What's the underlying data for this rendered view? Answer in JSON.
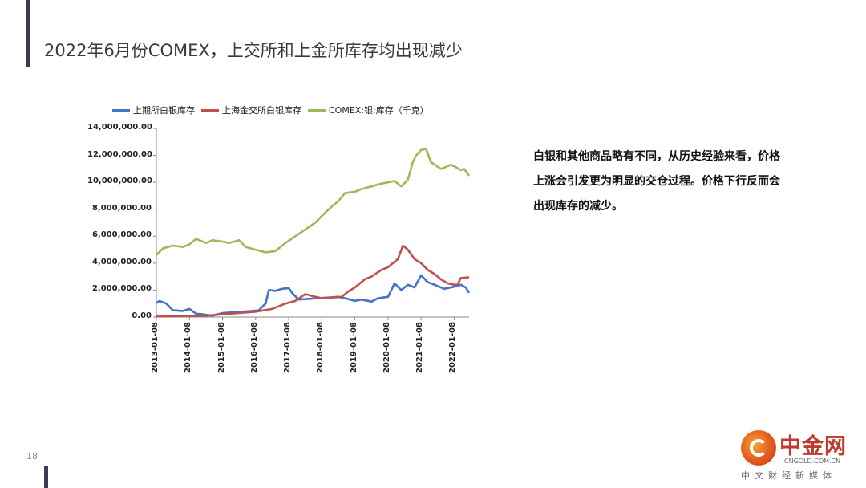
{
  "slide": {
    "title": "2022年6月份COMEX，上交所和上金所库存均出现减少",
    "page_number": "18",
    "body_text": "白银和其他商品略有不同，从历史经验来看，价格上涨会引发更为明显的交仓过程。价格下行反而会出现库存的减少。"
  },
  "logo": {
    "main": "中金网",
    "url": "CNGOLD.COM.CN",
    "sub": "中文财经新媒体"
  },
  "chart_data": {
    "type": "line",
    "title": "",
    "xlabel": "",
    "ylabel": "",
    "ylim": [
      0,
      14000000
    ],
    "yticks": [
      "0.00",
      "2,000,000.00",
      "4,000,000.00",
      "6,000,000.00",
      "8,000,000.00",
      "10,000,000.00",
      "12,000,000.00",
      "14,000,000.00"
    ],
    "ytick_values": [
      0,
      2000000,
      4000000,
      6000000,
      8000000,
      10000000,
      12000000,
      14000000
    ],
    "xlim": [
      2013.0,
      2022.45
    ],
    "xticks": [
      "2013-01-08",
      "2014-01-08",
      "2015-01-08",
      "2016-01-08",
      "2017-01-08",
      "2018-01-08",
      "2019-01-08",
      "2020-01-08",
      "2021-01-08",
      "2022-01-08"
    ],
    "xtick_values": [
      2013,
      2014,
      2015,
      2016,
      2017,
      2018,
      2019,
      2020,
      2021,
      2022
    ],
    "grid": false,
    "legend_position": "top",
    "series": [
      {
        "name": "上期所白银库存",
        "color": "#4472c4",
        "x": [
          2013.0,
          2013.1,
          2013.3,
          2013.5,
          2013.8,
          2014.0,
          2014.2,
          2014.4,
          2014.7,
          2015.0,
          2015.3,
          2015.6,
          2015.9,
          2016.1,
          2016.3,
          2016.4,
          2016.6,
          2016.8,
          2017.0,
          2017.1,
          2017.3,
          2017.6,
          2017.9,
          2018.2,
          2018.5,
          2018.7,
          2019.0,
          2019.2,
          2019.5,
          2019.7,
          2020.0,
          2020.2,
          2020.4,
          2020.6,
          2020.8,
          2021.0,
          2021.2,
          2021.4,
          2021.7,
          2022.0,
          2022.2,
          2022.35,
          2022.45
        ],
        "values": [
          1050000,
          1200000,
          1000000,
          500000,
          450000,
          600000,
          250000,
          200000,
          100000,
          300000,
          350000,
          400000,
          450000,
          500000,
          1000000,
          2000000,
          1950000,
          2100000,
          2150000,
          1800000,
          1300000,
          1350000,
          1400000,
          1450000,
          1500000,
          1400000,
          1200000,
          1300000,
          1150000,
          1400000,
          1500000,
          2500000,
          2000000,
          2400000,
          2200000,
          3100000,
          2600000,
          2400000,
          2100000,
          2250000,
          2400000,
          2200000,
          1800000
        ]
      },
      {
        "name": "上海金交所白银库存",
        "color": "#c0504d",
        "x": [
          2013.0,
          2013.5,
          2014.0,
          2014.5,
          2015.0,
          2015.5,
          2016.0,
          2016.5,
          2016.9,
          2017.2,
          2017.5,
          2017.8,
          2018.0,
          2018.3,
          2018.6,
          2018.8,
          2019.0,
          2019.3,
          2019.5,
          2019.8,
          2020.0,
          2020.3,
          2020.45,
          2020.6,
          2020.8,
          2021.0,
          2021.2,
          2021.4,
          2021.6,
          2021.8,
          2022.0,
          2022.1,
          2022.2,
          2022.45
        ],
        "values": [
          50000,
          60000,
          80000,
          100000,
          200000,
          300000,
          400000,
          600000,
          1000000,
          1200000,
          1700000,
          1500000,
          1400000,
          1450000,
          1500000,
          1900000,
          2200000,
          2800000,
          3000000,
          3500000,
          3700000,
          4300000,
          5300000,
          5000000,
          4300000,
          4000000,
          3500000,
          3200000,
          2800000,
          2500000,
          2400000,
          2400000,
          2900000,
          2950000
        ]
      },
      {
        "name": "COMEX:银:库存（千克）",
        "color": "#9bbb59",
        "x": [
          2013.0,
          2013.2,
          2013.5,
          2013.8,
          2014.0,
          2014.2,
          2014.5,
          2014.7,
          2015.0,
          2015.2,
          2015.5,
          2015.7,
          2016.0,
          2016.3,
          2016.6,
          2016.9,
          2017.2,
          2017.5,
          2017.8,
          2018.0,
          2018.3,
          2018.5,
          2018.7,
          2019.0,
          2019.2,
          2019.5,
          2019.8,
          2020.0,
          2020.2,
          2020.4,
          2020.6,
          2020.75,
          2020.85,
          2021.0,
          2021.15,
          2021.3,
          2021.6,
          2021.9,
          2022.0,
          2022.2,
          2022.3,
          2022.45
        ],
        "values": [
          4600000,
          5100000,
          5300000,
          5200000,
          5400000,
          5800000,
          5500000,
          5700000,
          5600000,
          5500000,
          5700000,
          5200000,
          5000000,
          4800000,
          4900000,
          5500000,
          6000000,
          6500000,
          7000000,
          7500000,
          8200000,
          8600000,
          9200000,
          9300000,
          9500000,
          9700000,
          9900000,
          10000000,
          10100000,
          9700000,
          10200000,
          11500000,
          12000000,
          12400000,
          12500000,
          11500000,
          11000000,
          11300000,
          11200000,
          10900000,
          11000000,
          10500000
        ]
      }
    ]
  }
}
